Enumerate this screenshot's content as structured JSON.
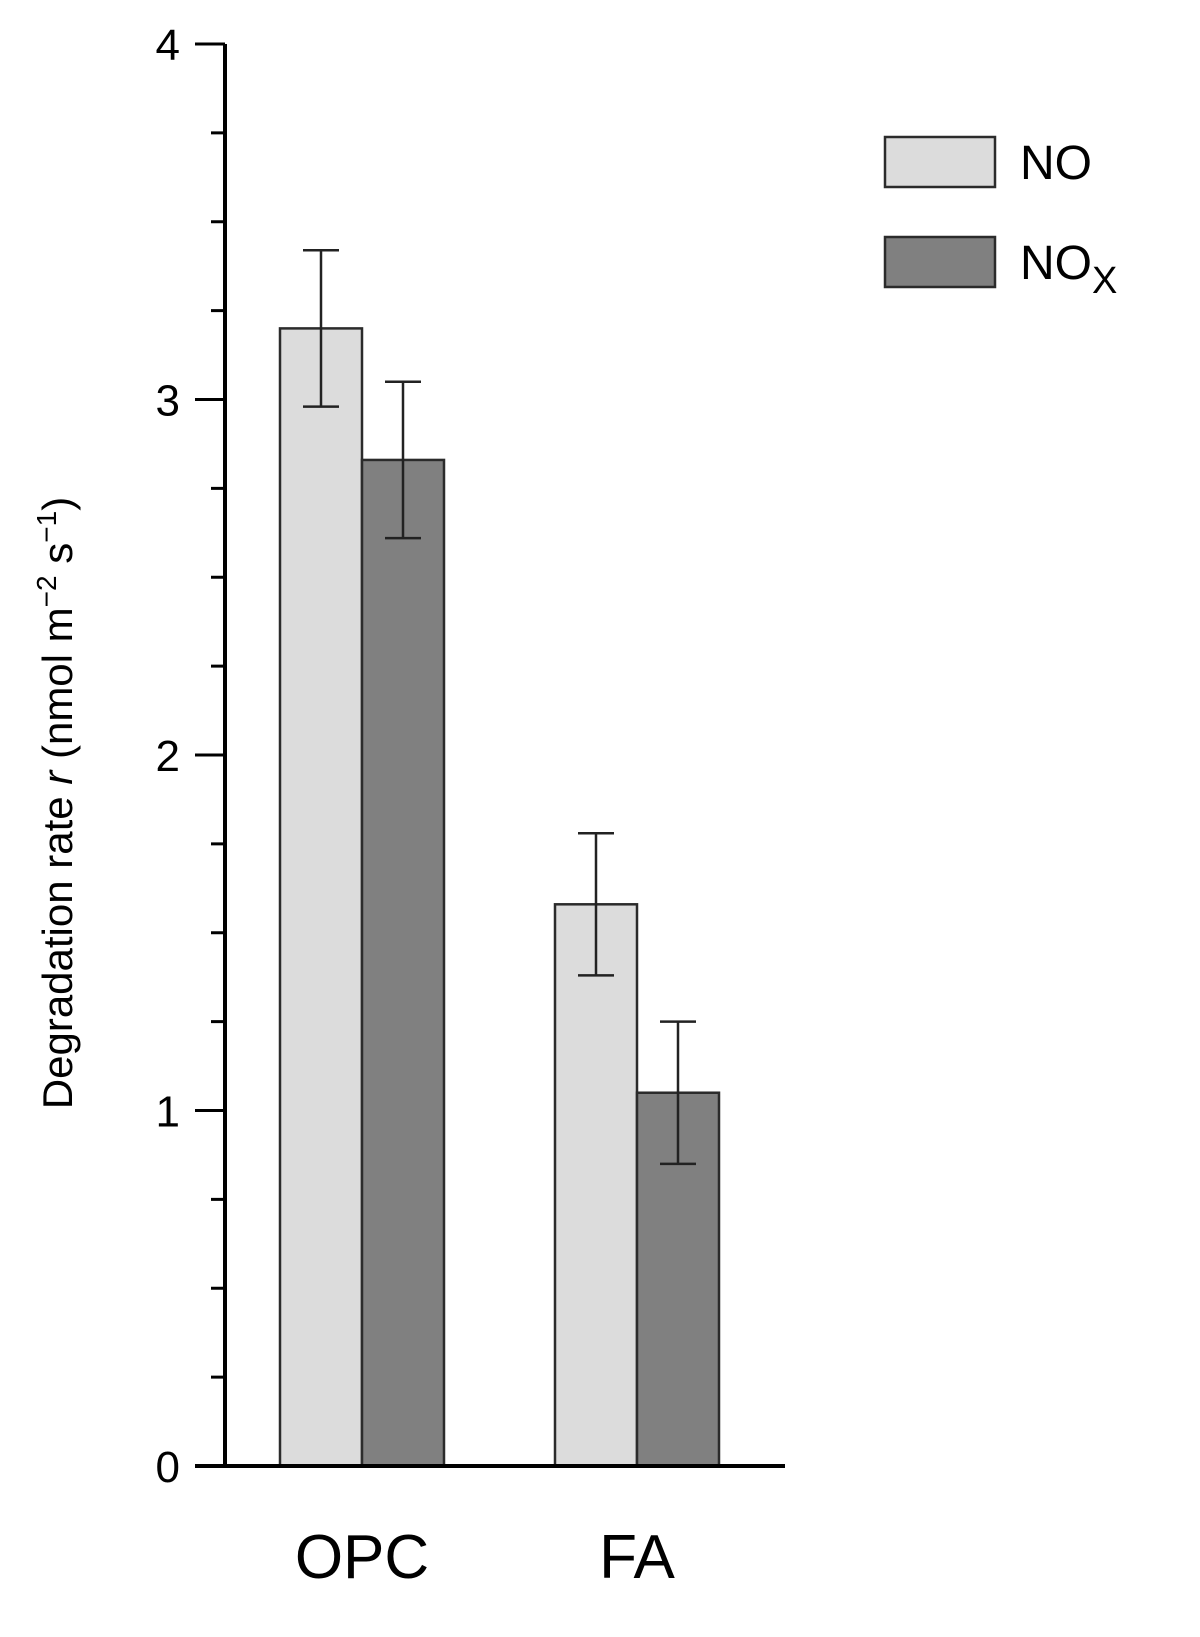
{
  "chart_data": {
    "type": "bar",
    "categories": [
      "OPC",
      "FA"
    ],
    "series": [
      {
        "name": "NO",
        "values": [
          3.2,
          1.58
        ],
        "errors": [
          0.22,
          0.2
        ],
        "color": "#dcdcdc"
      },
      {
        "name": "NO",
        "name_subscript": "X",
        "values": [
          2.83,
          1.05
        ],
        "errors": [
          0.22,
          0.2
        ],
        "color": "#808080"
      }
    ],
    "ylabel": {
      "prefix": "Degradation rate ",
      "variable": "r",
      "units_open": " (nmol m",
      "sup1": "−2",
      "units_mid": " s",
      "sup2": "−1",
      "units_close": ")"
    },
    "ylim": [
      0,
      4
    ],
    "yticks": [
      "0",
      "1",
      "2",
      "3",
      "4"
    ],
    "minor_ticks_per_major": 4,
    "legend_position": "top-right",
    "grid": false
  }
}
